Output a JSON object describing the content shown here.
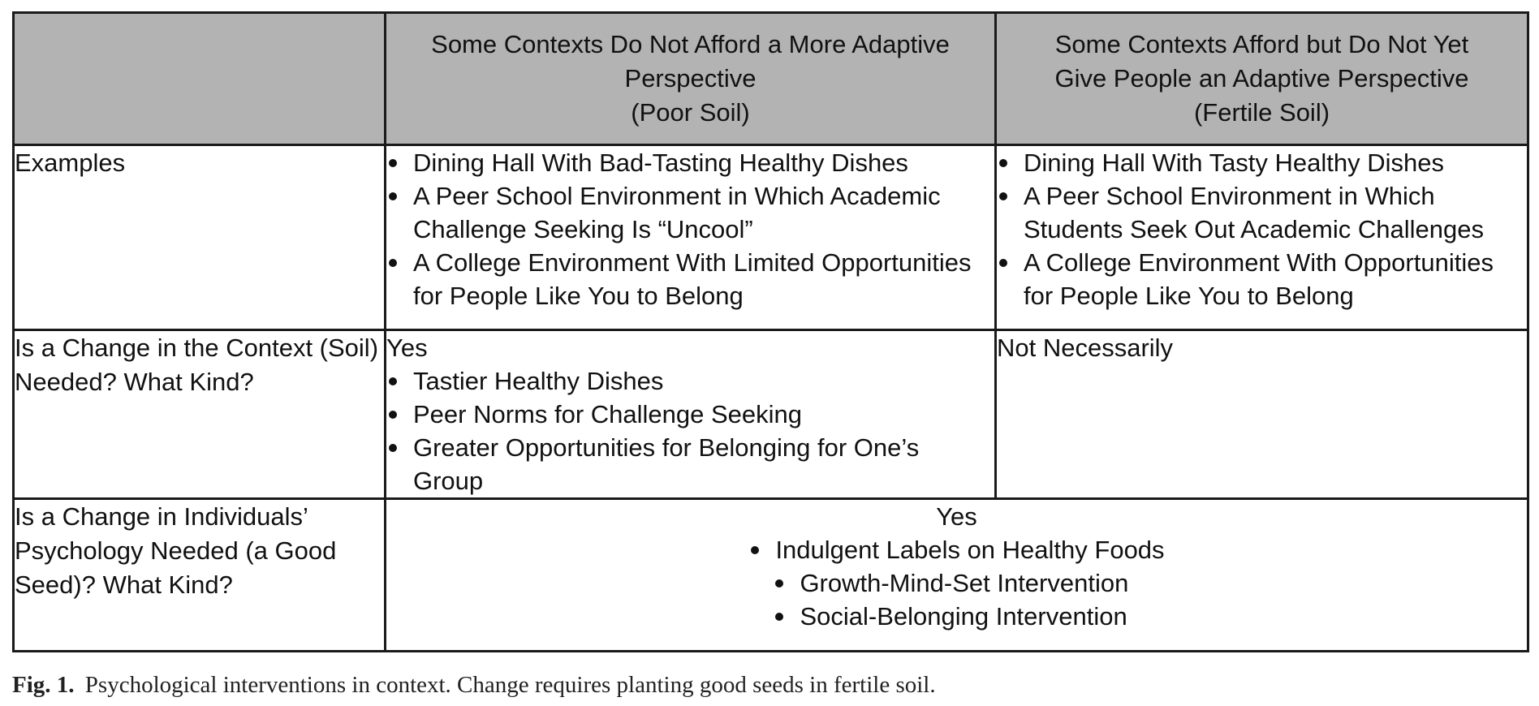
{
  "table": {
    "header": {
      "col1": "",
      "col2_lines": [
        "Some Contexts Do Not Afford a More Adaptive",
        "Perspective",
        "(Poor Soil)"
      ],
      "col3_lines": [
        "Some Contexts Afford but Do Not Yet",
        "Give People an Adaptive Perspective",
        "(Fertile Soil)"
      ]
    },
    "rows": [
      {
        "label": "Examples",
        "poor": {
          "intro": "",
          "items": [
            "Dining Hall With Bad-Tasting Healthy Dishes",
            "A Peer School Environment in Which Academic Challenge Seeking Is “Uncool”",
            "A College Environment With Limited Opportunities for People Like You to Belong"
          ]
        },
        "fertile": {
          "intro": "",
          "items": [
            "Dining Hall With Tasty Healthy Dishes",
            "A Peer School Environment in Which Students Seek Out Academic Challenges",
            "A College Environment With Opportunities for People Like You to Belong"
          ]
        }
      },
      {
        "label": "Is a Change in the Context (Soil) Needed? What Kind?",
        "poor": {
          "intro": "Yes",
          "items": [
            "Tastier Healthy Dishes",
            "Peer Norms for Challenge Seeking",
            "Greater Opportunities for Belonging for One’s Group"
          ]
        },
        "fertile": {
          "intro": "Not Necessarily",
          "items": []
        }
      },
      {
        "label": "Is a Change in Individuals’ Psychology Needed (a Good Seed)? What Kind?",
        "merged": {
          "intro": "Yes",
          "items": [
            "Indulgent Labels on Healthy Foods",
            "Growth-Mind-Set Intervention",
            "Social-Belonging Intervention"
          ]
        }
      }
    ]
  },
  "caption": {
    "label": "Fig. 1.",
    "text": "Psychological interventions in context. Change requires planting good seeds in fertile soil."
  }
}
